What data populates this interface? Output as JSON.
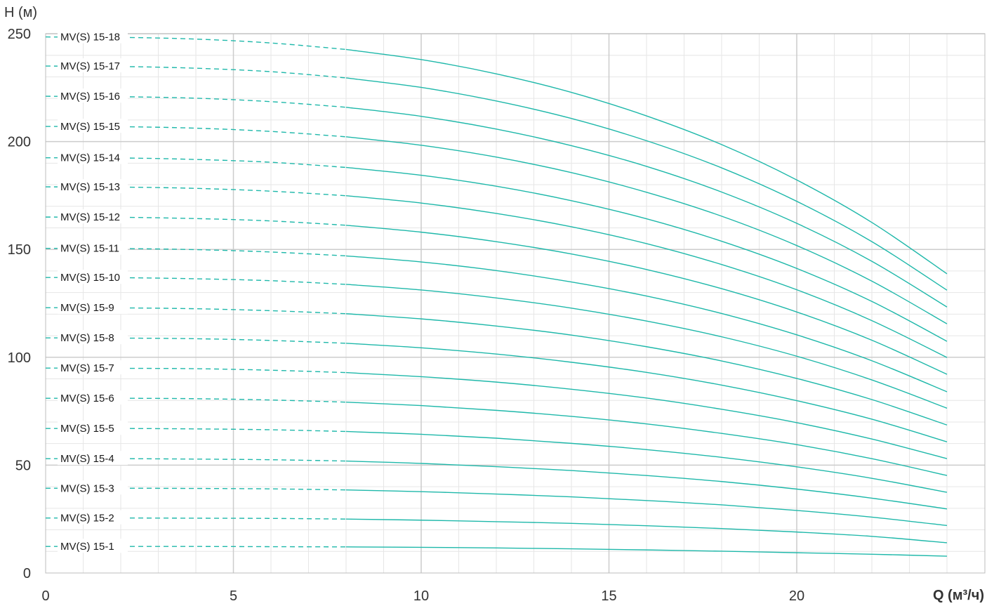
{
  "chart_data": {
    "type": "line",
    "ylabel": "H (м)",
    "xlabel": "Q (м³/ч)",
    "xlim": [
      0,
      25
    ],
    "ylim": [
      0,
      250
    ],
    "x_ticks": [
      "0",
      "5",
      "10",
      "15",
      "20"
    ],
    "y_ticks": [
      "0",
      "50",
      "100",
      "150",
      "200",
      "250"
    ],
    "grid": true,
    "line_color": "#1fb8aa",
    "grid_color": "#e6e6e6",
    "major_grid_color": "#cccccc",
    "dashed_segment": {
      "from_x": 0,
      "to_x": 8
    },
    "solid_segment": {
      "from_x": 8,
      "to_x": 24
    },
    "x": [
      0,
      2,
      4,
      6,
      8,
      10,
      12,
      14,
      16,
      18,
      20,
      22,
      24
    ],
    "series": [
      {
        "name": "MV(S) 15-1",
        "values": [
          12.3,
          12.3,
          12.3,
          12.2,
          12.1,
          11.9,
          11.6,
          11.2,
          10.7,
          10.1,
          9.4,
          8.7,
          7.8
        ]
      },
      {
        "name": "MV(S) 15-2",
        "values": [
          25.5,
          25.5,
          25.4,
          25.3,
          25.0,
          24.5,
          23.8,
          23.0,
          21.9,
          20.6,
          19.0,
          17.0,
          14.0
        ]
      },
      {
        "name": "MV(S) 15-3",
        "values": [
          39.3,
          39.3,
          39.2,
          39.0,
          38.5,
          37.7,
          36.6,
          35.3,
          33.6,
          31.6,
          29.0,
          25.9,
          22.0
        ]
      },
      {
        "name": "MV(S) 15-4",
        "values": [
          53.0,
          53.0,
          52.8,
          52.5,
          51.9,
          50.8,
          49.3,
          47.5,
          45.2,
          42.4,
          38.9,
          34.7,
          29.7
        ]
      },
      {
        "name": "MV(S) 15-5",
        "values": [
          67.0,
          67.0,
          66.8,
          66.4,
          65.6,
          64.3,
          62.5,
          60.1,
          57.2,
          53.6,
          49.2,
          43.9,
          37.4
        ]
      },
      {
        "name": "MV(S) 15-6",
        "values": [
          81.0,
          81.0,
          80.8,
          80.2,
          79.2,
          77.6,
          75.4,
          72.6,
          69.1,
          64.7,
          59.5,
          53.0,
          45.2
        ]
      },
      {
        "name": "MV(S) 15-7",
        "values": [
          95.0,
          94.9,
          94.7,
          94.0,
          92.9,
          91.0,
          88.5,
          85.2,
          81.1,
          75.9,
          69.7,
          62.1,
          53.0
        ]
      },
      {
        "name": "MV(S) 15-8",
        "values": [
          109.0,
          108.9,
          108.6,
          107.8,
          106.5,
          104.4,
          101.5,
          97.7,
          93.0,
          87.1,
          79.9,
          71.3,
          60.8
        ]
      },
      {
        "name": "MV(S) 15-9",
        "values": [
          123.0,
          122.9,
          122.5,
          121.6,
          120.2,
          117.8,
          114.5,
          110.3,
          104.9,
          98.3,
          90.2,
          80.4,
          68.6
        ]
      },
      {
        "name": "MV(S) 15-10",
        "values": [
          137.0,
          136.9,
          136.4,
          135.5,
          133.8,
          131.2,
          127.5,
          122.8,
          116.8,
          109.5,
          100.5,
          89.5,
          76.4
        ]
      },
      {
        "name": "MV(S) 15-11",
        "values": [
          150.5,
          150.4,
          149.9,
          148.8,
          147.0,
          144.2,
          140.2,
          134.9,
          128.4,
          120.3,
          110.4,
          98.4,
          84.0
        ]
      },
      {
        "name": "MV(S) 15-12",
        "values": [
          165.0,
          164.9,
          164.3,
          163.2,
          161.2,
          158.0,
          153.6,
          147.9,
          140.7,
          131.8,
          121.0,
          107.9,
          92.1
        ]
      },
      {
        "name": "MV(S) 15-13",
        "values": [
          179.0,
          178.9,
          178.3,
          177.0,
          174.9,
          171.5,
          166.7,
          160.5,
          152.7,
          143.0,
          131.3,
          117.0,
          99.9
        ]
      },
      {
        "name": "MV(S) 15-14",
        "values": [
          192.5,
          192.4,
          191.7,
          190.4,
          188.0,
          184.4,
          179.3,
          172.6,
          164.2,
          153.8,
          141.2,
          125.9,
          107.4
        ]
      },
      {
        "name": "MV(S) 15-15",
        "values": [
          207.0,
          206.9,
          206.2,
          204.7,
          202.2,
          198.3,
          192.8,
          185.6,
          176.5,
          165.4,
          151.8,
          135.3,
          115.5
        ]
      },
      {
        "name": "MV(S) 15-16",
        "values": [
          221.0,
          220.8,
          220.1,
          218.5,
          215.9,
          211.7,
          205.8,
          198.1,
          188.5,
          176.6,
          162.1,
          144.5,
          123.3
        ]
      },
      {
        "name": "MV(S) 15-17",
        "values": [
          235.0,
          234.8,
          234.0,
          232.4,
          229.5,
          225.1,
          218.8,
          210.7,
          200.4,
          187.8,
          172.3,
          153.6,
          131.1
        ]
      },
      {
        "name": "MV(S) 15-18",
        "values": [
          248.5,
          248.3,
          247.5,
          245.7,
          242.7,
          238.0,
          231.4,
          222.8,
          211.9,
          198.6,
          182.2,
          162.5,
          138.7
        ]
      }
    ]
  }
}
